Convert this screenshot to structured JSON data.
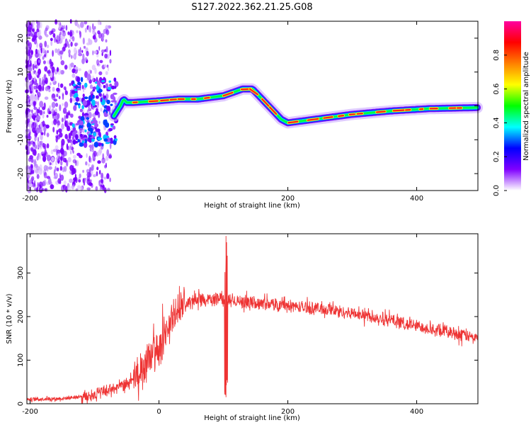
{
  "title": "S127.2022.362.21.25.G08",
  "chart_data": [
    {
      "type": "heatmap",
      "xlabel": "Height of straight line (km)",
      "ylabel": "Frequency (Hz)",
      "xlim": [
        -205,
        495
      ],
      "ylim": [
        -25,
        25
      ],
      "xticks": [
        -200,
        0,
        200,
        400
      ],
      "yticks": [
        -20,
        -10,
        0,
        10,
        20
      ],
      "colorbar": {
        "label": "Normalized spectral amplitude",
        "ticks": [
          0.0,
          0.2,
          0.4,
          0.6,
          0.8
        ],
        "range": [
          0,
          1
        ],
        "colormap": [
          "#ffffff",
          "#8000ff",
          "#0000ff",
          "#00ffff",
          "#00ff00",
          "#ffff00",
          "#ff8000",
          "#ff0000",
          "#ff00a0"
        ]
      },
      "ridge": {
        "x": [
          -70,
          -60,
          -55,
          -50,
          -40,
          0,
          30,
          60,
          100,
          130,
          145,
          170,
          190,
          200,
          240,
          300,
          360,
          420,
          495
        ],
        "y": [
          -3,
          0,
          2,
          1,
          1,
          1.5,
          2,
          2,
          3,
          5,
          5,
          0,
          -4,
          -5,
          -4,
          -2.5,
          -1.5,
          -0.8,
          -0.5
        ]
      }
    },
    {
      "type": "line",
      "xlabel": "Height of straight line (km)",
      "ylabel": "SNR (10 * v/v)",
      "xlim": [
        -205,
        495
      ],
      "ylim": [
        0,
        390
      ],
      "xticks": [
        -200,
        0,
        200,
        400
      ],
      "yticks": [
        0,
        100,
        200,
        300
      ],
      "color": "#ee3333",
      "envelope": {
        "x": [
          -205,
          -150,
          -110,
          -80,
          -60,
          -40,
          -20,
          0,
          20,
          40,
          60,
          80,
          95,
          100,
          110,
          150,
          200,
          250,
          300,
          350,
          400,
          450,
          495
        ],
        "y": [
          10,
          12,
          18,
          30,
          40,
          50,
          90,
          130,
          195,
          230,
          238,
          240,
          245,
          243,
          238,
          232,
          225,
          218,
          208,
          195,
          178,
          165,
          150
        ]
      },
      "spike": {
        "x": 104,
        "y_top": 385,
        "y_bottom": 15
      }
    }
  ]
}
